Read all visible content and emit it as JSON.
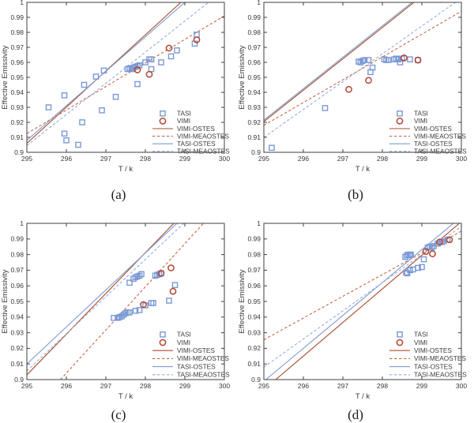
{
  "figure": {
    "colors": {
      "tasi": "#7f9bd3",
      "tasi_dashed": "#95abdc",
      "tasi_marker": "#7b99d6",
      "vimi": "#a84c2c",
      "vimi_dashed": "#c4684a",
      "vimi_marker": "#b54530",
      "axis": "#3f3f3f",
      "text": "#3a3a3a"
    },
    "legend": [
      {
        "label": "TASI",
        "kind": "marker",
        "marker": "square",
        "color": "tasi_marker"
      },
      {
        "label": "VIMI",
        "kind": "marker",
        "marker": "circle",
        "color": "vimi_marker"
      },
      {
        "label": "VIMI-OSTES",
        "kind": "line",
        "style": "solid",
        "color": "vimi"
      },
      {
        "label": "VIMI-MEAOSTES",
        "kind": "line",
        "style": "dashed",
        "color": "vimi_dashed"
      },
      {
        "label": "TASI-OSTES",
        "kind": "line",
        "style": "solid",
        "color": "tasi"
      },
      {
        "label": "TASI-MEAOSTES",
        "kind": "line",
        "style": "dashed",
        "color": "tasi_dashed"
      }
    ]
  },
  "chart_data": [
    {
      "type": "scatter",
      "caption": "(a)",
      "xlabel": "T / k",
      "ylabel": "Effective Emissivity",
      "xlim": [
        295,
        300
      ],
      "ylim": [
        0.9,
        1
      ],
      "x_ticks": [
        "295",
        "296",
        "297",
        "298",
        "299",
        "300"
      ],
      "y_ticks": [
        "1",
        "0.99",
        "0.98",
        "0.97",
        "0.96",
        "0.95",
        "0.94",
        "0.93",
        "0.92",
        "0.91",
        "0.9"
      ],
      "series": [
        {
          "name": "VIMI-OSTES",
          "kind": "line",
          "style": "solid",
          "color": "vimi",
          "points": [
            [
              295,
              0.906
            ],
            [
              298.9,
              1.0
            ]
          ]
        },
        {
          "name": "VIMI-MEAOSTES",
          "kind": "line",
          "style": "dashed",
          "color": "vimi_dashed",
          "points": [
            [
              295,
              0.9125
            ],
            [
              300,
              0.991
            ]
          ]
        },
        {
          "name": "TASI-OSTES",
          "kind": "line",
          "style": "solid",
          "color": "tasi",
          "points": [
            [
              295,
              0.908
            ],
            [
              299.0,
              1.0
            ]
          ]
        },
        {
          "name": "TASI-MEAOSTES",
          "kind": "line",
          "style": "dashed",
          "color": "tasi_dashed",
          "points": [
            [
              295,
              0.9045
            ],
            [
              299.6,
              1.0
            ]
          ]
        },
        {
          "name": "TASI",
          "kind": "scatter",
          "marker": "square",
          "color": "tasi_marker",
          "points": [
            [
              295.55,
              0.93
            ],
            [
              295.95,
              0.938
            ],
            [
              295.95,
              0.9125
            ],
            [
              296.0,
              0.908
            ],
            [
              296.3,
              0.905
            ],
            [
              296.4,
              0.92
            ],
            [
              296.45,
              0.945
            ],
            [
              296.75,
              0.9505
            ],
            [
              296.9,
              0.928
            ],
            [
              296.95,
              0.9545
            ],
            [
              297.25,
              0.937
            ],
            [
              297.55,
              0.9555
            ],
            [
              297.6,
              0.956
            ],
            [
              297.65,
              0.9555
            ],
            [
              297.7,
              0.9565
            ],
            [
              297.75,
              0.957
            ],
            [
              297.8,
              0.9575
            ],
            [
              297.85,
              0.958
            ],
            [
              297.8,
              0.9455
            ],
            [
              298.0,
              0.96
            ],
            [
              298.1,
              0.962
            ],
            [
              298.15,
              0.962
            ],
            [
              298.15,
              0.9555
            ],
            [
              298.4,
              0.96
            ],
            [
              298.65,
              0.964
            ],
            [
              298.8,
              0.968
            ],
            [
              299.25,
              0.9725
            ],
            [
              299.3,
              0.9785
            ]
          ]
        },
        {
          "name": "VIMI",
          "kind": "scatter",
          "marker": "circle",
          "color": "vimi_marker",
          "points": [
            [
              297.8,
              0.955
            ],
            [
              298.1,
              0.952
            ],
            [
              298.6,
              0.9695
            ],
            [
              299.3,
              0.975
            ]
          ]
        }
      ]
    },
    {
      "type": "scatter",
      "caption": "(b)",
      "xlabel": "T / k",
      "ylabel": "Effective Emissivity",
      "xlim": [
        295,
        300
      ],
      "ylim": [
        0.9,
        1
      ],
      "x_ticks": [
        "295",
        "296",
        "297",
        "298",
        "299",
        "300"
      ],
      "y_ticks": [
        "1",
        "0.99",
        "0.98",
        "0.97",
        "0.96",
        "0.95",
        "0.94",
        "0.93",
        "0.92",
        "0.91",
        "0.9"
      ],
      "series": [
        {
          "name": "VIMI-OSTES",
          "kind": "line",
          "style": "solid",
          "color": "vimi",
          "points": [
            [
              295,
              0.9205
            ],
            [
              298.8,
              1.0
            ]
          ]
        },
        {
          "name": "VIMI-MEAOSTES",
          "kind": "line",
          "style": "dashed",
          "color": "vimi_dashed",
          "points": [
            [
              295,
              0.918
            ],
            [
              300,
              0.994
            ]
          ]
        },
        {
          "name": "TASI-OSTES",
          "kind": "line",
          "style": "solid",
          "color": "tasi",
          "points": [
            [
              295,
              0.9215
            ],
            [
              298.75,
              1.0
            ]
          ]
        },
        {
          "name": "TASI-MEAOSTES",
          "kind": "line",
          "style": "dashed",
          "color": "tasi_dashed",
          "points": [
            [
              295,
              0.91
            ],
            [
              299.85,
              1.0
            ]
          ]
        },
        {
          "name": "TASI",
          "kind": "scatter",
          "marker": "square",
          "color": "tasi_marker",
          "points": [
            [
              295.2,
              0.903
            ],
            [
              296.55,
              0.9295
            ],
            [
              297.4,
              0.9605
            ],
            [
              297.45,
              0.96
            ],
            [
              297.5,
              0.961
            ],
            [
              297.55,
              0.9615
            ],
            [
              297.65,
              0.9615
            ],
            [
              297.7,
              0.9535
            ],
            [
              297.75,
              0.9565
            ],
            [
              298.05,
              0.962
            ],
            [
              298.1,
              0.9615
            ],
            [
              298.15,
              0.9615
            ],
            [
              298.3,
              0.962
            ],
            [
              298.35,
              0.9625
            ],
            [
              298.4,
              0.962
            ],
            [
              298.45,
              0.96
            ],
            [
              298.5,
              0.9625
            ],
            [
              298.7,
              0.962
            ],
            [
              298.9,
              0.9615
            ]
          ]
        },
        {
          "name": "VIMI",
          "kind": "scatter",
          "marker": "circle",
          "color": "vimi_marker",
          "points": [
            [
              297.15,
              0.942
            ],
            [
              297.65,
              0.948
            ],
            [
              298.55,
              0.963
            ],
            [
              298.9,
              0.9615
            ]
          ]
        }
      ]
    },
    {
      "type": "scatter",
      "caption": "(c)",
      "xlabel": "T / k",
      "ylabel": "Effective Emissivity",
      "xlim": [
        295,
        300
      ],
      "ylim": [
        0.9,
        1
      ],
      "x_ticks": [
        "295",
        "296",
        "297",
        "298",
        "299",
        "300"
      ],
      "y_ticks": [
        "1",
        "0.99",
        "0.98",
        "0.97",
        "0.96",
        "0.95",
        "0.94",
        "0.93",
        "0.92",
        "0.91",
        "0.9"
      ],
      "series": [
        {
          "name": "VIMI-OSTES",
          "kind": "line",
          "style": "solid",
          "color": "vimi",
          "points": [
            [
              295,
              0.903
            ],
            [
              298.72,
              1.0
            ]
          ]
        },
        {
          "name": "VIMI-MEAOSTES",
          "kind": "line",
          "style": "dashed",
          "color": "vimi_dashed",
          "points": [
            [
              295.85,
              0.9
            ],
            [
              299.47,
              1.0
            ]
          ]
        },
        {
          "name": "TASI-OSTES",
          "kind": "line",
          "style": "solid",
          "color": "tasi",
          "points": [
            [
              295,
              0.91
            ],
            [
              298.8,
              1.0
            ]
          ]
        },
        {
          "name": "TASI-MEAOSTES",
          "kind": "line",
          "style": "dashed",
          "color": "tasi_dashed",
          "points": [
            [
              295,
              0.9055
            ],
            [
              298.97,
              1.0
            ]
          ]
        },
        {
          "name": "TASI",
          "kind": "scatter",
          "marker": "square",
          "color": "tasi_marker",
          "points": [
            [
              297.2,
              0.9395
            ],
            [
              297.3,
              0.9395
            ],
            [
              297.35,
              0.94
            ],
            [
              297.4,
              0.9405
            ],
            [
              297.45,
              0.9415
            ],
            [
              297.5,
              0.9425
            ],
            [
              297.55,
              0.943
            ],
            [
              297.6,
              0.943
            ],
            [
              297.75,
              0.944
            ],
            [
              297.85,
              0.9445
            ],
            [
              298.0,
              0.9475
            ],
            [
              298.15,
              0.949
            ],
            [
              298.2,
              0.949
            ],
            [
              298.6,
              0.9505
            ],
            [
              297.6,
              0.962
            ],
            [
              297.7,
              0.9645
            ],
            [
              297.75,
              0.9655
            ],
            [
              297.8,
              0.966
            ],
            [
              297.85,
              0.9665
            ],
            [
              297.9,
              0.9675
            ],
            [
              298.25,
              0.9665
            ],
            [
              298.3,
              0.967
            ],
            [
              298.35,
              0.9675
            ],
            [
              298.4,
              0.968
            ],
            [
              298.75,
              0.9605
            ]
          ]
        },
        {
          "name": "VIMI",
          "kind": "scatter",
          "marker": "circle",
          "color": "vimi_marker",
          "points": [
            [
              297.95,
              0.948
            ],
            [
              298.4,
              0.968
            ],
            [
              298.65,
              0.9715
            ],
            [
              298.7,
              0.9565
            ]
          ]
        }
      ]
    },
    {
      "type": "scatter",
      "caption": "(d)",
      "xlabel": "T / k",
      "ylabel": "Effective Emissivity",
      "xlim": [
        295,
        300
      ],
      "ylim": [
        0.9,
        1
      ],
      "x_ticks": [
        "295",
        "296",
        "297",
        "298",
        "299",
        "300"
      ],
      "y_ticks": [
        "1",
        "0.99",
        "0.98",
        "0.97",
        "0.96",
        "0.95",
        "0.94",
        "0.93",
        "0.92",
        "0.91",
        "0.9"
      ],
      "series": [
        {
          "name": "VIMI-OSTES",
          "kind": "line",
          "style": "solid",
          "color": "vimi",
          "points": [
            [
              295.3,
              0.9
            ],
            [
              299.95,
              1.0
            ]
          ]
        },
        {
          "name": "VIMI-MEAOSTES",
          "kind": "line",
          "style": "dashed",
          "color": "vimi_dashed",
          "points": [
            [
              295,
              0.9255
            ],
            [
              300,
              0.995
            ]
          ]
        },
        {
          "name": "TASI-OSTES",
          "kind": "line",
          "style": "solid",
          "color": "tasi",
          "points": [
            [
              295.05,
              0.9
            ],
            [
              299.8,
              1.0
            ]
          ]
        },
        {
          "name": "TASI-MEAOSTES",
          "kind": "line",
          "style": "dashed",
          "color": "tasi_dashed",
          "points": [
            [
              295,
              0.908
            ],
            [
              300,
              0.998
            ]
          ]
        },
        {
          "name": "TASI",
          "kind": "scatter",
          "marker": "square",
          "color": "tasi_marker",
          "points": [
            [
              298.58,
              0.9785
            ],
            [
              298.62,
              0.9795
            ],
            [
              298.66,
              0.98
            ],
            [
              298.7,
              0.9795
            ],
            [
              298.72,
              0.98
            ],
            [
              298.6,
              0.9685
            ],
            [
              298.63,
              0.968
            ],
            [
              298.7,
              0.97
            ],
            [
              298.78,
              0.9705
            ],
            [
              298.9,
              0.9715
            ],
            [
              299.0,
              0.972
            ],
            [
              299.05,
              0.977
            ],
            [
              299.15,
              0.9845
            ],
            [
              299.2,
              0.985
            ],
            [
              299.25,
              0.9845
            ],
            [
              299.3,
              0.9855
            ],
            [
              299.4,
              0.987
            ],
            [
              299.5,
              0.988
            ],
            [
              299.55,
              0.9885
            ],
            [
              299.65,
              0.9895
            ]
          ]
        },
        {
          "name": "VIMI",
          "kind": "scatter",
          "marker": "circle",
          "color": "vimi_marker",
          "points": [
            [
              299.1,
              0.982
            ],
            [
              299.27,
              0.9805
            ],
            [
              299.45,
              0.988
            ],
            [
              299.7,
              0.9895
            ]
          ]
        }
      ]
    }
  ]
}
